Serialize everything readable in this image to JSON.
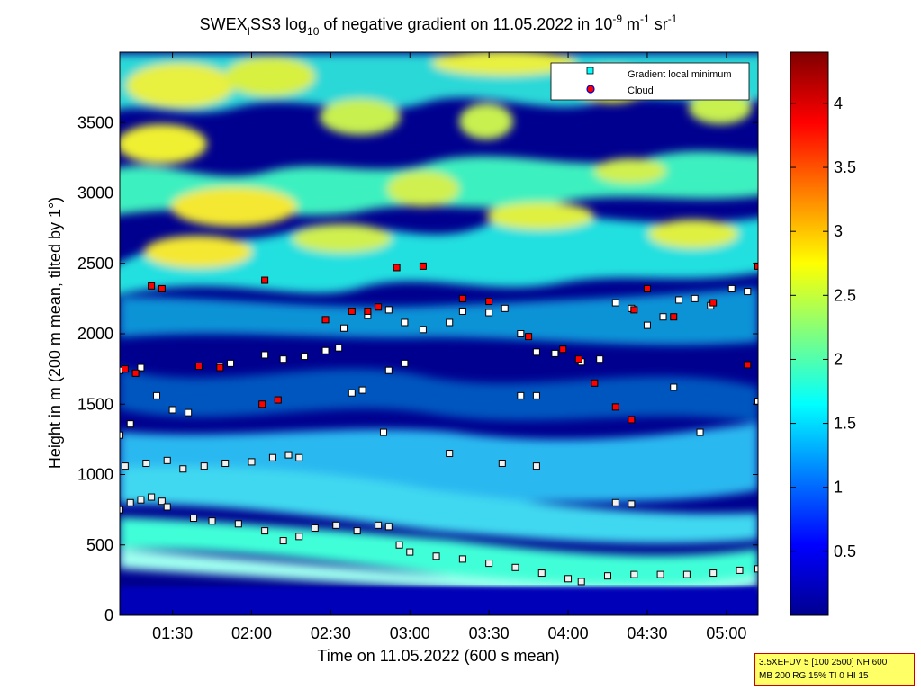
{
  "chart_data": {
    "type": "heatmap",
    "title": {
      "prefix": "SWEX",
      "sub": "I",
      "mid": "SS3 log",
      "log_sub": "10",
      "rest": " of negative gradient on 11.05.2022 in 10",
      "exp1": "-9",
      "unit_m": " m",
      "exp2": "-1",
      "unit_sr": " sr",
      "exp3": "-1"
    },
    "xlabel": "Time on 11.05.2022 (600 s mean)",
    "ylabel": "Height in m (200 m mean, tilted by 1°)",
    "xlim": [
      "01:10",
      "05:12"
    ],
    "ylim": [
      0,
      4000
    ],
    "x_ticks": [
      "01:30",
      "02:00",
      "02:30",
      "03:00",
      "03:30",
      "04:00",
      "04:30",
      "05:00"
    ],
    "y_ticks": [
      "0",
      "500",
      "1000",
      "1500",
      "2000",
      "2500",
      "3000",
      "3500"
    ],
    "colorbar": {
      "range": [
        0,
        4.4
      ],
      "ticks": [
        "0.5",
        "1",
        "1.5",
        "2",
        "2.5",
        "3",
        "3.5",
        "4"
      ],
      "colormap": "jet"
    },
    "legend": {
      "placement": "top-right",
      "entries": [
        {
          "label": "Gradient local minimum",
          "color": "#00ffff",
          "marker": "square"
        },
        {
          "label": "Cloud",
          "color": "#ff0000",
          "marker": "circle"
        }
      ]
    },
    "series": [
      {
        "name": "Gradient local minimum",
        "points": [
          [
            "01:10",
            750
          ],
          [
            "01:14",
            800
          ],
          [
            "01:18",
            820
          ],
          [
            "01:22",
            840
          ],
          [
            "01:26",
            810
          ],
          [
            "01:28",
            770
          ],
          [
            "01:38",
            690
          ],
          [
            "01:45",
            670
          ],
          [
            "01:55",
            650
          ],
          [
            "02:05",
            600
          ],
          [
            "02:12",
            530
          ],
          [
            "02:18",
            560
          ],
          [
            "02:24",
            620
          ],
          [
            "02:32",
            640
          ],
          [
            "02:40",
            600
          ],
          [
            "02:48",
            640
          ],
          [
            "02:52",
            630
          ],
          [
            "02:56",
            500
          ],
          [
            "03:00",
            450
          ],
          [
            "03:10",
            420
          ],
          [
            "03:20",
            400
          ],
          [
            "03:30",
            370
          ],
          [
            "03:40",
            340
          ],
          [
            "03:50",
            300
          ],
          [
            "04:00",
            260
          ],
          [
            "04:05",
            240
          ],
          [
            "04:15",
            280
          ],
          [
            "04:25",
            290
          ],
          [
            "04:35",
            290
          ],
          [
            "04:45",
            290
          ],
          [
            "04:55",
            300
          ],
          [
            "05:05",
            320
          ],
          [
            "05:12",
            330
          ],
          [
            "01:12",
            1060
          ],
          [
            "01:20",
            1080
          ],
          [
            "01:28",
            1100
          ],
          [
            "01:34",
            1040
          ],
          [
            "01:42",
            1060
          ],
          [
            "01:50",
            1080
          ],
          [
            "02:00",
            1090
          ],
          [
            "02:08",
            1120
          ],
          [
            "02:14",
            1140
          ],
          [
            "02:18",
            1120
          ],
          [
            "01:10",
            1280
          ],
          [
            "01:14",
            1360
          ],
          [
            "01:10",
            1740
          ],
          [
            "01:18",
            1760
          ],
          [
            "01:24",
            1560
          ],
          [
            "01:30",
            1460
          ],
          [
            "01:36",
            1440
          ],
          [
            "01:48",
            1770
          ],
          [
            "01:52",
            1790
          ],
          [
            "02:05",
            1850
          ],
          [
            "02:12",
            1820
          ],
          [
            "02:20",
            1840
          ],
          [
            "02:28",
            1880
          ],
          [
            "02:33",
            1900
          ],
          [
            "02:38",
            1580
          ],
          [
            "02:42",
            1600
          ],
          [
            "02:52",
            1740
          ],
          [
            "02:58",
            1790
          ],
          [
            "02:35",
            2040
          ],
          [
            "02:44",
            2130
          ],
          [
            "02:52",
            2170
          ],
          [
            "02:58",
            2080
          ],
          [
            "03:05",
            2030
          ],
          [
            "03:15",
            2080
          ],
          [
            "03:20",
            2160
          ],
          [
            "03:30",
            2150
          ],
          [
            "03:36",
            2180
          ],
          [
            "03:42",
            2000
          ],
          [
            "03:48",
            1870
          ],
          [
            "03:55",
            1860
          ],
          [
            "04:05",
            1800
          ],
          [
            "04:12",
            1820
          ],
          [
            "04:18",
            2220
          ],
          [
            "04:24",
            2180
          ],
          [
            "04:30",
            2060
          ],
          [
            "04:36",
            2120
          ],
          [
            "04:42",
            2240
          ],
          [
            "04:48",
            2250
          ],
          [
            "04:54",
            2200
          ],
          [
            "05:02",
            2320
          ],
          [
            "05:08",
            2300
          ],
          [
            "03:42",
            1560
          ],
          [
            "03:48",
            1560
          ],
          [
            "04:18",
            800
          ],
          [
            "04:24",
            790
          ],
          [
            "04:40",
            1620
          ],
          [
            "04:50",
            1300
          ],
          [
            "05:12",
            1520
          ],
          [
            "03:35",
            1080
          ],
          [
            "03:48",
            1060
          ],
          [
            "03:15",
            1150
          ],
          [
            "02:50",
            1300
          ]
        ]
      },
      {
        "name": "Cloud",
        "points": [
          [
            "01:12",
            1750
          ],
          [
            "01:16",
            1720
          ],
          [
            "01:22",
            2340
          ],
          [
            "01:26",
            2320
          ],
          [
            "01:40",
            1770
          ],
          [
            "01:48",
            1760
          ],
          [
            "02:04",
            1500
          ],
          [
            "02:10",
            1530
          ],
          [
            "02:05",
            2380
          ],
          [
            "02:28",
            2100
          ],
          [
            "02:38",
            2160
          ],
          [
            "02:44",
            2160
          ],
          [
            "02:48",
            2190
          ],
          [
            "02:55",
            2470
          ],
          [
            "03:05",
            2480
          ],
          [
            "03:20",
            2250
          ],
          [
            "03:30",
            2230
          ],
          [
            "03:45",
            1980
          ],
          [
            "03:58",
            1890
          ],
          [
            "04:04",
            1820
          ],
          [
            "04:10",
            1650
          ],
          [
            "04:18",
            1480
          ],
          [
            "04:25",
            2170
          ],
          [
            "04:30",
            2320
          ],
          [
            "04:40",
            2120
          ],
          [
            "04:55",
            2220
          ],
          [
            "05:08",
            1780
          ],
          [
            "05:12",
            2480
          ],
          [
            "04:24",
            1390
          ]
        ]
      }
    ]
  },
  "infobox": {
    "line1": "3.5XEFUV 5 [100 2500] NH 600",
    "line2": "MB 200 RG 15% TI 0 HI 15"
  }
}
